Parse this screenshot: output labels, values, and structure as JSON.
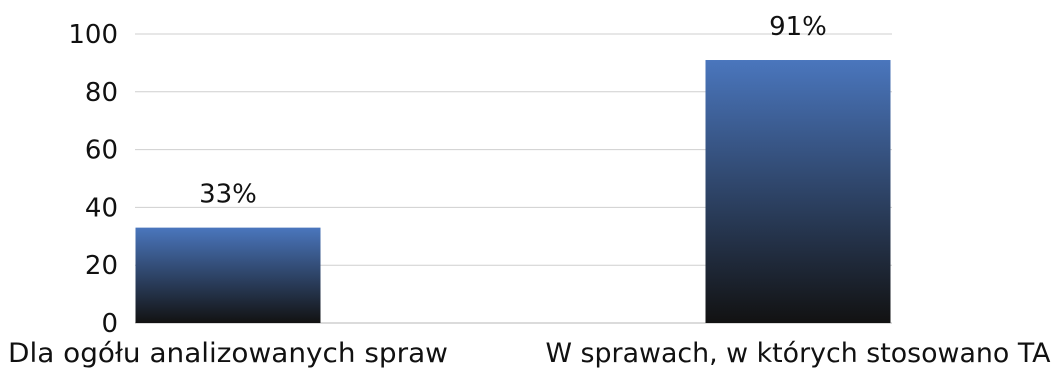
{
  "chart_data": {
    "type": "bar",
    "categories": [
      "Dla ogółu analizowanych spraw",
      "W sprawach, w których stosowano TA"
    ],
    "values": [
      33,
      91
    ],
    "data_labels": [
      "33%",
      "91%"
    ],
    "title": "",
    "xlabel": "",
    "ylabel": "",
    "ylim": [
      0,
      100
    ],
    "yticks": [
      "0",
      "20",
      "40",
      "60",
      "80",
      "100"
    ],
    "grid": true,
    "legend": "none",
    "colors": {
      "bar_top": "#4a76bd",
      "bar_bottom": "#121212",
      "grid": "#cfcfcf",
      "text": "#111111"
    }
  }
}
